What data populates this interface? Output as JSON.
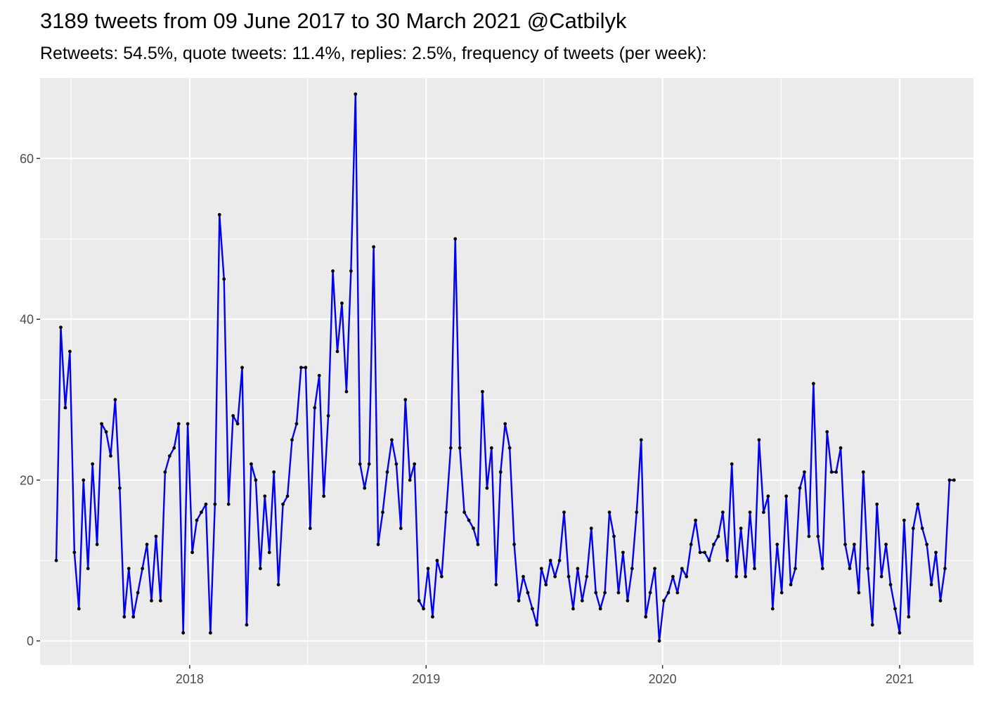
{
  "title": "3189 tweets from 09 June 2017 to 30 March 2021 @Catbilyk",
  "subtitle": "Retweets: 54.5%, quote tweets: 11.4%, replies: 2.5%, frequency of tweets (per week):",
  "chart_data": {
    "type": "line",
    "title": "3189 tweets from 09 June 2017 to 30 March 2021 @Catbilyk",
    "subtitle": "Retweets: 54.5%, quote tweets: 11.4%, replies: 2.5%, frequency of tweets (per week):",
    "xlabel": "",
    "ylabel": "",
    "x_tick_labels": [
      "2018",
      "2019",
      "2020",
      "2021"
    ],
    "y_tick_labels": [
      "0",
      "20",
      "40",
      "60"
    ],
    "ylim": [
      -3,
      70
    ],
    "xlim": [
      "2017-05-15",
      "2021-04-25"
    ],
    "x_start": "2017-06-09",
    "x_step_days": 7,
    "grid": true,
    "colors": {
      "line": "#0000ee",
      "points": "#000000",
      "panel": "#ebebeb",
      "grid": "#ffffff"
    },
    "series": [
      {
        "values": [
          10,
          39,
          29,
          36,
          11,
          4,
          20,
          9,
          22,
          12,
          27,
          26,
          23,
          30,
          19,
          3,
          9,
          3,
          6,
          9,
          12,
          5,
          13,
          5,
          21,
          23,
          24,
          27,
          1,
          27,
          11,
          15,
          16,
          17,
          1,
          17,
          53,
          45,
          17,
          28,
          27,
          34,
          2,
          22,
          20,
          9,
          18,
          11,
          21,
          7,
          17,
          18,
          25,
          27,
          34,
          34,
          14,
          29,
          33,
          18,
          28,
          46,
          36,
          42,
          31,
          46,
          68,
          22,
          19,
          22,
          49,
          12,
          16,
          21,
          25,
          22,
          14,
          30,
          20,
          22,
          5,
          4,
          9,
          3,
          10,
          8,
          16,
          24,
          50,
          24,
          16,
          15,
          14,
          12,
          31,
          19,
          24,
          7,
          21,
          27,
          24,
          12,
          5,
          8,
          6,
          4,
          2,
          9,
          7,
          10,
          8,
          10,
          16,
          8,
          4,
          9,
          5,
          8,
          14,
          6,
          4,
          6,
          16,
          13,
          6,
          11,
          5,
          9,
          16,
          25,
          3,
          6,
          9,
          0,
          5,
          6,
          8,
          6,
          9,
          8,
          12,
          15,
          11,
          11,
          10,
          12,
          13,
          16,
          10,
          22,
          8,
          14,
          8,
          16,
          9,
          25,
          16,
          18,
          4,
          12,
          6,
          18,
          7,
          9,
          19,
          21,
          13,
          32,
          13,
          9,
          26,
          21,
          21,
          24,
          12,
          9,
          12,
          6,
          21,
          9,
          2,
          17,
          8,
          12,
          7,
          4,
          1,
          15,
          3,
          14,
          17,
          14,
          12,
          7,
          11,
          5,
          9,
          20,
          20
        ]
      }
    ]
  }
}
